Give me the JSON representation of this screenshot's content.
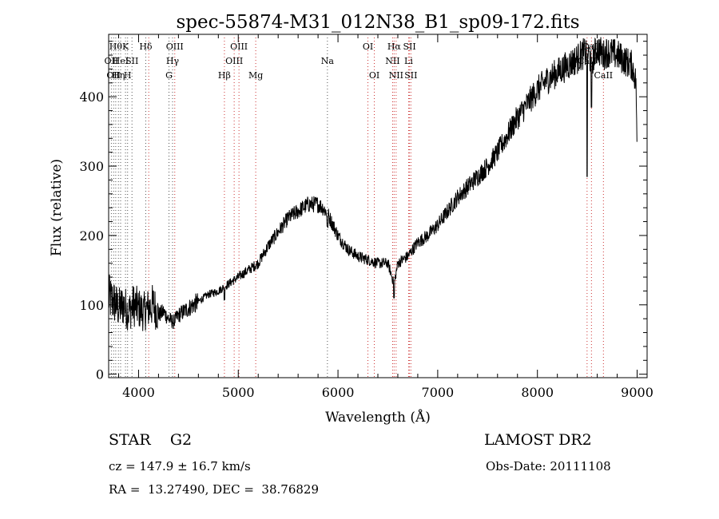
{
  "chart_data": {
    "type": "line",
    "title": "spec-55874-M31_012N38_B1_sp09-172.fits",
    "xlabel": "Wavelength (Å)",
    "ylabel": "Flux (relative)",
    "xlim": [
      3700,
      9100
    ],
    "ylim": [
      -5,
      490
    ],
    "xticks": [
      4000,
      5000,
      6000,
      7000,
      8000,
      9000
    ],
    "yticks": [
      0,
      100,
      200,
      300,
      400
    ],
    "grid": false,
    "series": [
      {
        "color": "#000000",
        "x": [
          3700,
          3750,
          3800,
          3850,
          3900,
          3950,
          4000,
          4050,
          4100,
          4150,
          4200,
          4250,
          4300,
          4350,
          4400,
          4450,
          4500,
          4600,
          4700,
          4800,
          4850,
          4900,
          5000,
          5100,
          5200,
          5300,
          5400,
          5500,
          5600,
          5700,
          5800,
          5850,
          5900,
          5950,
          6000,
          6100,
          6200,
          6300,
          6400,
          6500,
          6563,
          6600,
          6700,
          6800,
          6900,
          7000,
          7100,
          7200,
          7300,
          7400,
          7500,
          7600,
          7700,
          7800,
          7900,
          8000,
          8100,
          8200,
          8300,
          8400,
          8440,
          8500,
          8542,
          8600,
          8662,
          8700,
          8800,
          8850,
          8900,
          8950,
          8990,
          9000
        ],
        "y": [
          110,
          105,
          95,
          100,
          90,
          100,
          95,
          90,
          95,
          100,
          85,
          90,
          80,
          75,
          85,
          90,
          95,
          105,
          115,
          120,
          125,
          130,
          140,
          150,
          160,
          185,
          205,
          225,
          235,
          245,
          245,
          240,
          230,
          215,
          200,
          180,
          170,
          165,
          160,
          160,
          130,
          160,
          170,
          190,
          200,
          215,
          235,
          255,
          270,
          285,
          300,
          320,
          345,
          370,
          390,
          410,
          425,
          435,
          445,
          455,
          460,
          465,
          450,
          470,
          460,
          465,
          460,
          455,
          450,
          445,
          420,
          300
        ]
      }
    ],
    "lines": [
      {
        "x": 3727,
        "label": "OII",
        "row": 1,
        "color": "#555555"
      },
      {
        "x": 3750,
        "label": "OII",
        "row": 2,
        "color": "#555555"
      },
      {
        "x": 3771,
        "label": "Hθ",
        "row": 0,
        "color": "#555555"
      },
      {
        "x": 3798,
        "label": "Hη",
        "row": 2,
        "color": "#555555"
      },
      {
        "x": 3820,
        "label": "HeI",
        "row": 1,
        "color": "#555555"
      },
      {
        "x": 3869,
        "label": "K",
        "row": 0,
        "color": "#555555"
      },
      {
        "x": 3890,
        "label": "H",
        "row": 2,
        "color": "#555555"
      },
      {
        "x": 3934,
        "label": "SII",
        "row": 1,
        "color": "#555555"
      },
      {
        "x": 4072,
        "label": "Hδ",
        "row": 0,
        "color": "#555555"
      },
      {
        "x": 4102,
        "label": "",
        "row": 0,
        "color": "#cc3333"
      },
      {
        "x": 4305,
        "label": "G",
        "row": 2,
        "color": "#555555"
      },
      {
        "x": 4341,
        "label": "Hγ",
        "row": 1,
        "color": "#555555"
      },
      {
        "x": 4363,
        "label": "OIII",
        "row": 0,
        "color": "#cc3333"
      },
      {
        "x": 4861,
        "label": "Hβ",
        "row": 2,
        "color": "#cc3333"
      },
      {
        "x": 4959,
        "label": "OIII",
        "row": 1,
        "color": "#cc3333"
      },
      {
        "x": 5007,
        "label": "OIII",
        "row": 0,
        "color": "#cc3333"
      },
      {
        "x": 5175,
        "label": "Mg",
        "row": 2,
        "color": "#cc3333"
      },
      {
        "x": 5894,
        "label": "Na",
        "row": 1,
        "color": "#555555"
      },
      {
        "x": 6300,
        "label": "OI",
        "row": 0,
        "color": "#cc3333"
      },
      {
        "x": 6364,
        "label": "OI",
        "row": 2,
        "color": "#cc3333"
      },
      {
        "x": 6548,
        "label": "NII",
        "row": 1,
        "color": "#cc3333"
      },
      {
        "x": 6563,
        "label": "Hα",
        "row": 0,
        "color": "#cc3333"
      },
      {
        "x": 6583,
        "label": "NII",
        "row": 2,
        "color": "#cc3333"
      },
      {
        "x": 6708,
        "label": "Li",
        "row": 1,
        "color": "#cc3333"
      },
      {
        "x": 6717,
        "label": "SII",
        "row": 0,
        "color": "#cc3333"
      },
      {
        "x": 6731,
        "label": "SII",
        "row": 2,
        "color": "#cc3333"
      },
      {
        "x": 8498,
        "label": "CaII",
        "row": 1,
        "color": "#cc3333"
      },
      {
        "x": 8542,
        "label": "CaII",
        "row": 0,
        "color": "#cc3333"
      },
      {
        "x": 8662,
        "label": "CaII",
        "row": 2,
        "color": "#cc3333"
      }
    ]
  },
  "info": {
    "class": "STAR    G2",
    "survey": "LAMOST DR2",
    "cz": "cz = 147.9 ± 16.7 km/s",
    "obs_date": "Obs-Date: 20111108",
    "radec": "RA =  13.27490, DEC =  38.76829"
  }
}
